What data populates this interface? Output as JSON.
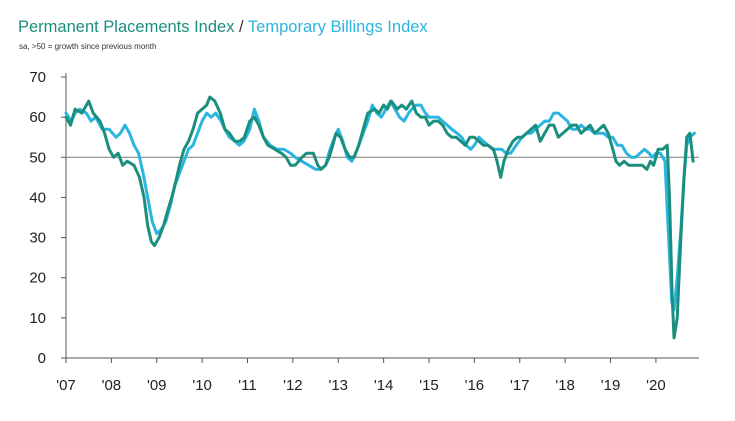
{
  "chart_data": {
    "type": "line",
    "title_parts": [
      "Permanent Placements Index",
      " / ",
      "Temporary Billings Index"
    ],
    "subtitle": "sa, >50 = growth since previous month",
    "xlabel": "",
    "ylabel": "",
    "ylim": [
      0,
      70
    ],
    "yticks": [
      0,
      10,
      20,
      30,
      40,
      50,
      60,
      70
    ],
    "xlim": [
      2007,
      2020.95
    ],
    "x_tick_labels": [
      "'07",
      "'08",
      "'09",
      "'10",
      "'11",
      "'12",
      "'13",
      "'14",
      "'15",
      "'16",
      "'17",
      "'18",
      "'19",
      "'20"
    ],
    "x_tick_values": [
      2007,
      2008,
      2009,
      2010,
      2011,
      2012,
      2013,
      2014,
      2015,
      2016,
      2017,
      2018,
      2019,
      2020
    ],
    "reference_line": 50,
    "series": [
      {
        "name": "Permanent Placements Index",
        "color": "#1b8f7e",
        "points": [
          [
            2007.0,
            60
          ],
          [
            2007.1,
            58
          ],
          [
            2007.2,
            62
          ],
          [
            2007.35,
            61
          ],
          [
            2007.5,
            64
          ],
          [
            2007.6,
            61
          ],
          [
            2007.75,
            59
          ],
          [
            2007.85,
            56
          ],
          [
            2007.95,
            52
          ],
          [
            2008.05,
            50
          ],
          [
            2008.15,
            51
          ],
          [
            2008.25,
            48
          ],
          [
            2008.35,
            49
          ],
          [
            2008.5,
            48
          ],
          [
            2008.62,
            45
          ],
          [
            2008.72,
            40
          ],
          [
            2008.8,
            33
          ],
          [
            2008.88,
            29
          ],
          [
            2008.95,
            28
          ],
          [
            2009.05,
            30
          ],
          [
            2009.15,
            33
          ],
          [
            2009.25,
            37
          ],
          [
            2009.33,
            40
          ],
          [
            2009.42,
            44
          ],
          [
            2009.5,
            48
          ],
          [
            2009.6,
            52
          ],
          [
            2009.7,
            54
          ],
          [
            2009.8,
            57
          ],
          [
            2009.9,
            61
          ],
          [
            2010.0,
            62
          ],
          [
            2010.1,
            63
          ],
          [
            2010.17,
            65
          ],
          [
            2010.28,
            64
          ],
          [
            2010.4,
            61
          ],
          [
            2010.5,
            57
          ],
          [
            2010.6,
            56
          ],
          [
            2010.72,
            54
          ],
          [
            2010.83,
            54
          ],
          [
            2010.93,
            55
          ],
          [
            2011.05,
            59
          ],
          [
            2011.15,
            60
          ],
          [
            2011.25,
            58
          ],
          [
            2011.35,
            55
          ],
          [
            2011.45,
            53
          ],
          [
            2011.6,
            52
          ],
          [
            2011.75,
            51
          ],
          [
            2011.85,
            50
          ],
          [
            2011.95,
            48
          ],
          [
            2012.05,
            48
          ],
          [
            2012.2,
            50
          ],
          [
            2012.3,
            51
          ],
          [
            2012.45,
            51
          ],
          [
            2012.55,
            48
          ],
          [
            2012.62,
            47
          ],
          [
            2012.72,
            48
          ],
          [
            2012.8,
            50
          ],
          [
            2012.88,
            53
          ],
          [
            2012.95,
            56
          ],
          [
            2013.05,
            55
          ],
          [
            2013.15,
            52
          ],
          [
            2013.25,
            50
          ],
          [
            2013.35,
            50
          ],
          [
            2013.45,
            53
          ],
          [
            2013.55,
            57
          ],
          [
            2013.65,
            61
          ],
          [
            2013.8,
            62
          ],
          [
            2013.9,
            61
          ],
          [
            2014.0,
            63
          ],
          [
            2014.08,
            62
          ],
          [
            2014.17,
            64
          ],
          [
            2014.3,
            62
          ],
          [
            2014.4,
            63
          ],
          [
            2014.5,
            62
          ],
          [
            2014.62,
            64
          ],
          [
            2014.72,
            61
          ],
          [
            2014.82,
            60
          ],
          [
            2014.92,
            60
          ],
          [
            2015.0,
            58
          ],
          [
            2015.1,
            59
          ],
          [
            2015.2,
            59
          ],
          [
            2015.3,
            58
          ],
          [
            2015.4,
            56
          ],
          [
            2015.5,
            55
          ],
          [
            2015.6,
            55
          ],
          [
            2015.7,
            54
          ],
          [
            2015.8,
            53
          ],
          [
            2015.9,
            55
          ],
          [
            2016.0,
            55
          ],
          [
            2016.1,
            54
          ],
          [
            2016.2,
            53
          ],
          [
            2016.3,
            53
          ],
          [
            2016.42,
            52
          ],
          [
            2016.5,
            49
          ],
          [
            2016.58,
            45
          ],
          [
            2016.65,
            49
          ],
          [
            2016.75,
            52
          ],
          [
            2016.85,
            54
          ],
          [
            2016.95,
            55
          ],
          [
            2017.05,
            55
          ],
          [
            2017.15,
            56
          ],
          [
            2017.25,
            57
          ],
          [
            2017.35,
            58
          ],
          [
            2017.45,
            54
          ],
          [
            2017.55,
            56
          ],
          [
            2017.65,
            58
          ],
          [
            2017.75,
            58
          ],
          [
            2017.85,
            55
          ],
          [
            2017.95,
            56
          ],
          [
            2018.05,
            57
          ],
          [
            2018.15,
            58
          ],
          [
            2018.25,
            58
          ],
          [
            2018.35,
            56
          ],
          [
            2018.45,
            57
          ],
          [
            2018.55,
            58
          ],
          [
            2018.65,
            56
          ],
          [
            2018.75,
            57
          ],
          [
            2018.85,
            58
          ],
          [
            2018.95,
            56
          ],
          [
            2019.05,
            52
          ],
          [
            2019.12,
            49
          ],
          [
            2019.2,
            48
          ],
          [
            2019.3,
            49
          ],
          [
            2019.4,
            48
          ],
          [
            2019.5,
            48
          ],
          [
            2019.6,
            48
          ],
          [
            2019.7,
            48
          ],
          [
            2019.8,
            47
          ],
          [
            2019.88,
            49
          ],
          [
            2019.95,
            48
          ],
          [
            2020.05,
            52
          ],
          [
            2020.15,
            52
          ],
          [
            2020.25,
            53
          ],
          [
            2020.3,
            40
          ],
          [
            2020.36,
            15
          ],
          [
            2020.4,
            5
          ],
          [
            2020.47,
            10
          ],
          [
            2020.55,
            30
          ],
          [
            2020.62,
            45
          ],
          [
            2020.68,
            55
          ],
          [
            2020.75,
            56
          ],
          [
            2020.82,
            49
          ]
        ]
      },
      {
        "name": "Temporary Billings Index",
        "color": "#2bb5e0",
        "points": [
          [
            2007.0,
            61
          ],
          [
            2007.12,
            59
          ],
          [
            2007.2,
            61
          ],
          [
            2007.3,
            62
          ],
          [
            2007.45,
            61
          ],
          [
            2007.55,
            59
          ],
          [
            2007.65,
            60
          ],
          [
            2007.8,
            57
          ],
          [
            2007.95,
            57
          ],
          [
            2008.1,
            55
          ],
          [
            2008.2,
            56
          ],
          [
            2008.3,
            58
          ],
          [
            2008.4,
            56
          ],
          [
            2008.5,
            53
          ],
          [
            2008.6,
            51
          ],
          [
            2008.7,
            46
          ],
          [
            2008.8,
            40
          ],
          [
            2008.9,
            34
          ],
          [
            2009.0,
            31
          ],
          [
            2009.1,
            32
          ],
          [
            2009.2,
            34
          ],
          [
            2009.3,
            38
          ],
          [
            2009.4,
            43
          ],
          [
            2009.5,
            46
          ],
          [
            2009.6,
            49
          ],
          [
            2009.7,
            52
          ],
          [
            2009.8,
            53
          ],
          [
            2009.9,
            56
          ],
          [
            2010.0,
            59
          ],
          [
            2010.1,
            61
          ],
          [
            2010.2,
            60
          ],
          [
            2010.3,
            61
          ],
          [
            2010.42,
            59
          ],
          [
            2010.5,
            57
          ],
          [
            2010.6,
            55
          ],
          [
            2010.72,
            54
          ],
          [
            2010.82,
            53
          ],
          [
            2010.92,
            54
          ],
          [
            2011.05,
            57
          ],
          [
            2011.15,
            62
          ],
          [
            2011.25,
            59
          ],
          [
            2011.35,
            55
          ],
          [
            2011.5,
            53
          ],
          [
            2011.65,
            52
          ],
          [
            2011.8,
            52
          ],
          [
            2011.95,
            51
          ],
          [
            2012.05,
            50
          ],
          [
            2012.2,
            49
          ],
          [
            2012.35,
            48
          ],
          [
            2012.5,
            47
          ],
          [
            2012.6,
            47
          ],
          [
            2012.72,
            48
          ],
          [
            2012.82,
            52
          ],
          [
            2012.92,
            55
          ],
          [
            2013.0,
            57
          ],
          [
            2013.1,
            54
          ],
          [
            2013.2,
            50
          ],
          [
            2013.3,
            49
          ],
          [
            2013.42,
            52
          ],
          [
            2013.55,
            56
          ],
          [
            2013.65,
            59
          ],
          [
            2013.75,
            63
          ],
          [
            2013.85,
            61
          ],
          [
            2013.95,
            60
          ],
          [
            2014.05,
            62
          ],
          [
            2014.15,
            64
          ],
          [
            2014.25,
            62
          ],
          [
            2014.35,
            60
          ],
          [
            2014.45,
            59
          ],
          [
            2014.55,
            61
          ],
          [
            2014.62,
            62
          ],
          [
            2014.72,
            63
          ],
          [
            2014.82,
            63
          ],
          [
            2014.92,
            61
          ],
          [
            2015.0,
            60
          ],
          [
            2015.1,
            60
          ],
          [
            2015.2,
            60
          ],
          [
            2015.3,
            59
          ],
          [
            2015.4,
            58
          ],
          [
            2015.5,
            57
          ],
          [
            2015.62,
            56
          ],
          [
            2015.72,
            55
          ],
          [
            2015.82,
            53
          ],
          [
            2015.92,
            52
          ],
          [
            2016.0,
            53
          ],
          [
            2016.1,
            55
          ],
          [
            2016.2,
            54
          ],
          [
            2016.3,
            53
          ],
          [
            2016.4,
            52
          ],
          [
            2016.5,
            52
          ],
          [
            2016.6,
            52
          ],
          [
            2016.7,
            51
          ],
          [
            2016.8,
            51
          ],
          [
            2016.92,
            53
          ],
          [
            2017.05,
            55
          ],
          [
            2017.15,
            56
          ],
          [
            2017.25,
            56
          ],
          [
            2017.35,
            57
          ],
          [
            2017.45,
            58
          ],
          [
            2017.55,
            59
          ],
          [
            2017.65,
            59
          ],
          [
            2017.75,
            61
          ],
          [
            2017.85,
            61
          ],
          [
            2017.95,
            60
          ],
          [
            2018.05,
            59
          ],
          [
            2018.15,
            57
          ],
          [
            2018.25,
            57
          ],
          [
            2018.35,
            58
          ],
          [
            2018.45,
            57
          ],
          [
            2018.55,
            57
          ],
          [
            2018.65,
            56
          ],
          [
            2018.75,
            56
          ],
          [
            2018.85,
            56
          ],
          [
            2018.95,
            55
          ],
          [
            2019.05,
            55
          ],
          [
            2019.15,
            53
          ],
          [
            2019.25,
            53
          ],
          [
            2019.35,
            51
          ],
          [
            2019.45,
            50
          ],
          [
            2019.55,
            50
          ],
          [
            2019.65,
            51
          ],
          [
            2019.75,
            52
          ],
          [
            2019.85,
            51
          ],
          [
            2019.92,
            50
          ],
          [
            2020.0,
            51
          ],
          [
            2020.1,
            51
          ],
          [
            2020.2,
            49
          ],
          [
            2020.28,
            30
          ],
          [
            2020.35,
            14
          ],
          [
            2020.4,
            12
          ],
          [
            2020.47,
            20
          ],
          [
            2020.55,
            32
          ],
          [
            2020.62,
            45
          ],
          [
            2020.68,
            53
          ],
          [
            2020.75,
            55
          ],
          [
            2020.85,
            56
          ]
        ]
      }
    ]
  }
}
